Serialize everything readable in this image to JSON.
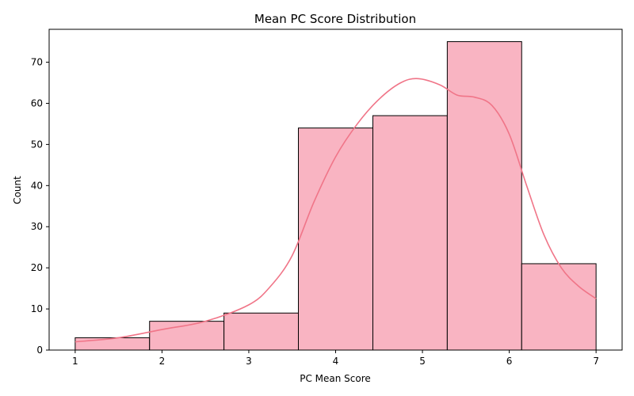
{
  "chart_data": {
    "type": "bar",
    "title": "Mean PC Score Distribution",
    "xlabel": "PC Mean Score",
    "ylabel": "Count",
    "xlim": [
      0.7,
      7.3
    ],
    "ylim": [
      0,
      78
    ],
    "xticks": [
      1,
      2,
      3,
      4,
      5,
      6,
      7
    ],
    "yticks": [
      0,
      10,
      20,
      30,
      40,
      50,
      60,
      70
    ],
    "bin_edges": [
      1.0,
      1.857,
      2.714,
      3.571,
      4.429,
      5.286,
      6.143,
      7.0
    ],
    "values": [
      3,
      7,
      9,
      54,
      57,
      75,
      21
    ],
    "grid": false,
    "colors": {
      "bar_fill": "#f9b4c2",
      "bar_edge": "#000000",
      "kde_line": "#f07588",
      "axis": "#000000"
    },
    "kde": {
      "x": [
        1.0,
        1.5,
        2.0,
        2.5,
        3.0,
        3.25,
        3.5,
        3.75,
        4.0,
        4.25,
        4.5,
        4.75,
        4.95,
        5.2,
        5.4,
        5.6,
        5.8,
        6.0,
        6.2,
        6.4,
        6.6,
        6.8,
        7.0
      ],
      "y": [
        2,
        3,
        5,
        7,
        11,
        15.5,
        23,
        36,
        47,
        55,
        61,
        65,
        66,
        64.5,
        62,
        61.5,
        59.5,
        52.5,
        40,
        28,
        20,
        15.5,
        12.5
      ]
    }
  }
}
